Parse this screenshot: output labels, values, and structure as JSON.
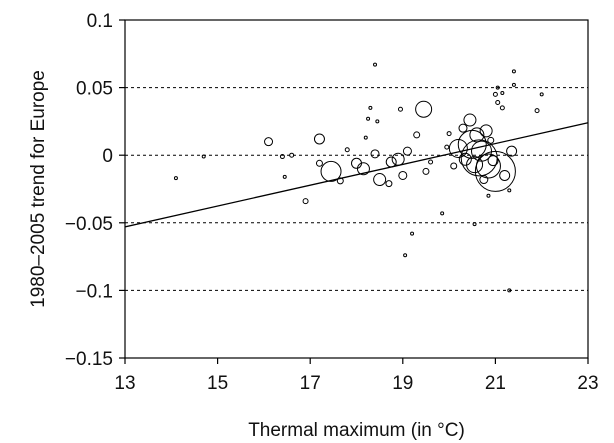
{
  "chart_data": {
    "type": "scatter",
    "title": "",
    "xlabel": "Thermal maximum (in °C)",
    "ylabel": "1980–2005 trend for Europe",
    "xlim": [
      13,
      23
    ],
    "ylim": [
      -0.15,
      0.1
    ],
    "x_ticks": [
      13,
      15,
      17,
      19,
      21,
      23
    ],
    "x_tick_labels": [
      "13",
      "15",
      "17",
      "19",
      "21",
      "23"
    ],
    "y_ticks": [
      0.1,
      0.05,
      0,
      -0.05,
      -0.1,
      -0.15
    ],
    "y_tick_labels": [
      "0.1",
      "0.05",
      "0",
      "−0.05",
      "−0.1",
      "−0.15"
    ],
    "grid": {
      "horizontal_dashed_at": [
        0.05,
        0,
        -0.05,
        -0.1
      ]
    },
    "legend": "none",
    "marker": "open-circle",
    "marker_size_encodes": "relative weight (circle radius)",
    "trend_line": {
      "x": [
        13,
        23
      ],
      "y": [
        -0.053,
        0.024
      ]
    },
    "points": [
      {
        "x": 14.1,
        "y": -0.017,
        "r": 1.5
      },
      {
        "x": 14.7,
        "y": -0.001,
        "r": 1.5
      },
      {
        "x": 16.1,
        "y": 0.01,
        "r": 4
      },
      {
        "x": 16.4,
        "y": -0.001,
        "r": 2
      },
      {
        "x": 16.6,
        "y": 0.0,
        "r": 2
      },
      {
        "x": 16.45,
        "y": -0.016,
        "r": 1.5
      },
      {
        "x": 16.9,
        "y": -0.034,
        "r": 2.5
      },
      {
        "x": 17.2,
        "y": 0.012,
        "r": 5
      },
      {
        "x": 17.2,
        "y": -0.006,
        "r": 3
      },
      {
        "x": 17.45,
        "y": -0.012,
        "r": 10
      },
      {
        "x": 17.65,
        "y": -0.019,
        "r": 3
      },
      {
        "x": 17.8,
        "y": 0.004,
        "r": 2
      },
      {
        "x": 18.0,
        "y": -0.006,
        "r": 5
      },
      {
        "x": 18.15,
        "y": -0.01,
        "r": 6
      },
      {
        "x": 18.2,
        "y": 0.013,
        "r": 1.5
      },
      {
        "x": 18.25,
        "y": 0.027,
        "r": 1.5
      },
      {
        "x": 18.3,
        "y": 0.035,
        "r": 1.5
      },
      {
        "x": 18.4,
        "y": 0.067,
        "r": 1.5
      },
      {
        "x": 18.45,
        "y": 0.025,
        "r": 1.5
      },
      {
        "x": 18.4,
        "y": 0.001,
        "r": 4
      },
      {
        "x": 18.5,
        "y": -0.018,
        "r": 6
      },
      {
        "x": 18.7,
        "y": -0.021,
        "r": 3
      },
      {
        "x": 18.75,
        "y": -0.005,
        "r": 5
      },
      {
        "x": 18.9,
        "y": -0.003,
        "r": 6
      },
      {
        "x": 18.95,
        "y": 0.034,
        "r": 2
      },
      {
        "x": 19.0,
        "y": -0.015,
        "r": 4
      },
      {
        "x": 19.05,
        "y": -0.074,
        "r": 1.5
      },
      {
        "x": 19.2,
        "y": -0.058,
        "r": 1.5
      },
      {
        "x": 19.1,
        "y": 0.003,
        "r": 4
      },
      {
        "x": 19.3,
        "y": 0.015,
        "r": 3
      },
      {
        "x": 19.45,
        "y": 0.034,
        "r": 8
      },
      {
        "x": 19.5,
        "y": -0.012,
        "r": 3
      },
      {
        "x": 19.6,
        "y": -0.005,
        "r": 2
      },
      {
        "x": 19.85,
        "y": -0.043,
        "r": 1.5
      },
      {
        "x": 19.95,
        "y": 0.006,
        "r": 2
      },
      {
        "x": 20.0,
        "y": 0.016,
        "r": 2
      },
      {
        "x": 20.1,
        "y": -0.008,
        "r": 3
      },
      {
        "x": 20.2,
        "y": 0.005,
        "r": 9
      },
      {
        "x": 20.3,
        "y": 0.02,
        "r": 4
      },
      {
        "x": 20.35,
        "y": -0.003,
        "r": 6
      },
      {
        "x": 20.45,
        "y": 0.026,
        "r": 6
      },
      {
        "x": 20.5,
        "y": 0.008,
        "r": 14
      },
      {
        "x": 20.55,
        "y": -0.007,
        "r": 8
      },
      {
        "x": 20.55,
        "y": -0.051,
        "r": 1.5
      },
      {
        "x": 20.6,
        "y": 0.015,
        "r": 7
      },
      {
        "x": 20.65,
        "y": -0.002,
        "r": 18
      },
      {
        "x": 20.7,
        "y": 0.003,
        "r": 10
      },
      {
        "x": 20.75,
        "y": -0.018,
        "r": 4
      },
      {
        "x": 20.8,
        "y": 0.018,
        "r": 6
      },
      {
        "x": 20.85,
        "y": -0.008,
        "r": 12
      },
      {
        "x": 20.85,
        "y": -0.03,
        "r": 1.5
      },
      {
        "x": 20.9,
        "y": 0.011,
        "r": 3
      },
      {
        "x": 20.95,
        "y": -0.004,
        "r": 5
      },
      {
        "x": 21.0,
        "y": -0.012,
        "r": 20
      },
      {
        "x": 21.0,
        "y": 0.045,
        "r": 2
      },
      {
        "x": 21.05,
        "y": 0.05,
        "r": 1.5
      },
      {
        "x": 21.05,
        "y": 0.039,
        "r": 2
      },
      {
        "x": 21.15,
        "y": 0.046,
        "r": 1.5
      },
      {
        "x": 21.15,
        "y": 0.035,
        "r": 2
      },
      {
        "x": 21.2,
        "y": -0.015,
        "r": 5
      },
      {
        "x": 21.3,
        "y": -0.1,
        "r": 1.5
      },
      {
        "x": 21.3,
        "y": -0.026,
        "r": 1.5
      },
      {
        "x": 21.35,
        "y": 0.003,
        "r": 5
      },
      {
        "x": 21.4,
        "y": 0.062,
        "r": 1.5
      },
      {
        "x": 21.4,
        "y": 0.052,
        "r": 1.5
      },
      {
        "x": 21.9,
        "y": 0.033,
        "r": 2
      },
      {
        "x": 22.0,
        "y": 0.045,
        "r": 1.5
      }
    ]
  }
}
